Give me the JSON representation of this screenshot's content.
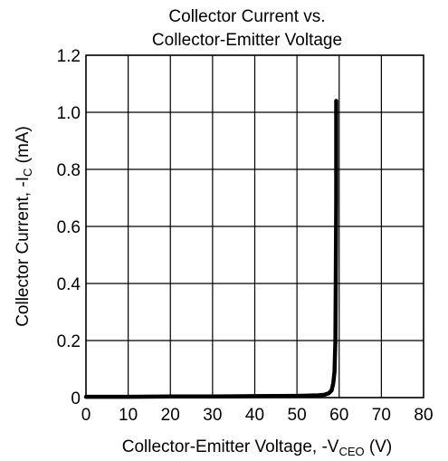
{
  "chart_data": {
    "type": "line",
    "title_line1": "Collector Current vs.",
    "title_line2": "Collector-Emitter Voltage",
    "xlabel": {
      "prefix": "Collector-Emitter Voltage, -V",
      "sub": "CEO",
      "suffix": " (V)"
    },
    "ylabel": {
      "prefix": "Collector Current, -I",
      "sub": "C",
      "suffix": " (mA)"
    },
    "xlim": [
      0,
      80
    ],
    "ylim": [
      0,
      1.2
    ],
    "x_ticks": [
      "0",
      "10",
      "20",
      "30",
      "40",
      "50",
      "60",
      "70",
      "80"
    ],
    "y_ticks": [
      "0",
      "0.2",
      "0.4",
      "0.6",
      "0.8",
      "1.0",
      "1.2"
    ],
    "grid": true,
    "line_color": "#000000",
    "series": [
      {
        "x": [
          0,
          10,
          20,
          30,
          40,
          50,
          55,
          56.5,
          57.5,
          58.2,
          58.6,
          58.9,
          59.1,
          59.2,
          59.3,
          59.3,
          59.3
        ],
        "y": [
          0.003,
          0.003,
          0.004,
          0.004,
          0.005,
          0.006,
          0.008,
          0.01,
          0.015,
          0.025,
          0.05,
          0.09,
          0.2,
          0.4,
          0.7,
          0.9,
          1.04
        ]
      }
    ]
  }
}
